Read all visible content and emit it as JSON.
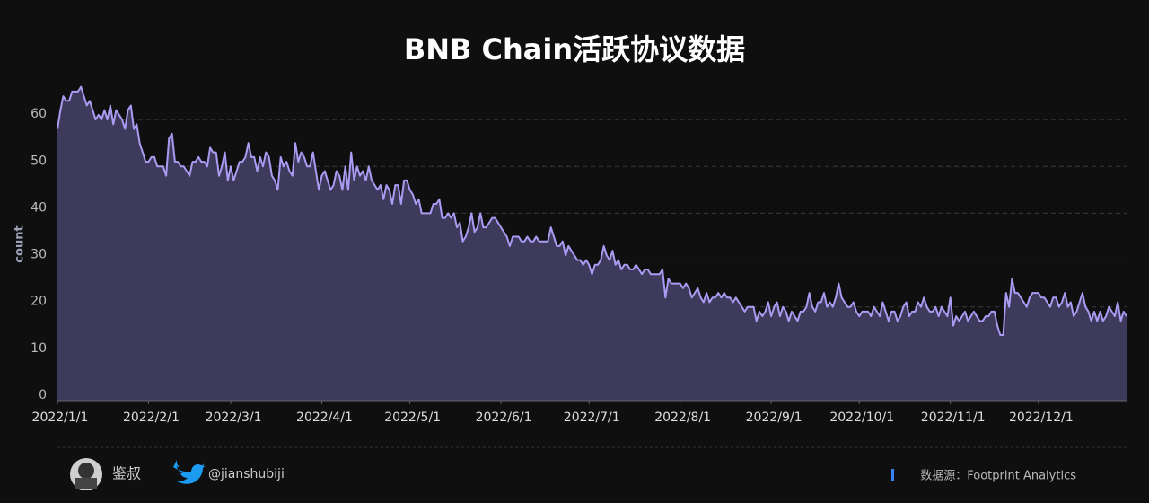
{
  "chart_data": {
    "type": "area",
    "title": "BNB Chain活跃协议数据",
    "y_label": "count",
    "color": "#a99cf2",
    "fill": "#3d3a5c",
    "x": [
      "2022/1/1",
      "2022/1/2",
      "2022/1/3",
      "2022/1/4",
      "2022/1/5",
      "2022/1/6",
      "2022/1/7",
      "2022/1/8",
      "2022/1/9",
      "2022/1/10",
      "2022/1/11",
      "2022/1/12",
      "2022/1/13",
      "2022/1/14",
      "2022/1/15",
      "2022/1/16",
      "2022/1/17",
      "2022/1/18",
      "2022/1/19",
      "2022/1/20",
      "2022/1/21",
      "2022/1/22",
      "2022/1/23",
      "2022/1/24",
      "2022/1/25",
      "2022/1/26",
      "2022/1/27",
      "2022/1/28",
      "2022/1/29",
      "2022/1/30",
      "2022/1/31",
      "2022/2/1",
      "2022/2/2",
      "2022/2/3",
      "2022/2/4",
      "2022/2/5",
      "2022/2/6",
      "2022/2/7",
      "2022/2/8",
      "2022/2/9",
      "2022/2/10",
      "2022/2/11",
      "2022/2/12",
      "2022/2/13",
      "2022/2/14",
      "2022/2/15",
      "2022/2/16",
      "2022/2/17",
      "2022/2/18",
      "2022/2/19",
      "2022/2/20",
      "2022/2/21",
      "2022/2/22",
      "2022/2/23",
      "2022/2/24",
      "2022/2/25",
      "2022/2/26",
      "2022/2/27",
      "2022/2/28",
      "2022/3/1",
      "2022/3/2",
      "2022/3/3",
      "2022/3/4",
      "2022/3/5",
      "2022/3/6",
      "2022/3/7",
      "2022/3/8",
      "2022/3/9",
      "2022/3/10",
      "2022/3/11",
      "2022/3/12",
      "2022/3/13",
      "2022/3/14",
      "2022/3/15",
      "2022/3/16",
      "2022/3/17",
      "2022/3/18",
      "2022/3/19",
      "2022/3/20",
      "2022/3/21",
      "2022/3/22",
      "2022/3/23",
      "2022/3/24",
      "2022/3/25",
      "2022/3/26",
      "2022/3/27",
      "2022/3/28",
      "2022/3/29",
      "2022/3/30",
      "2022/3/31",
      "2022/4/1",
      "2022/4/2",
      "2022/4/3",
      "2022/4/4",
      "2022/4/5",
      "2022/4/6",
      "2022/4/7",
      "2022/4/8",
      "2022/4/9",
      "2022/4/10",
      "2022/4/11",
      "2022/4/12",
      "2022/4/13",
      "2022/4/14",
      "2022/4/15",
      "2022/4/16",
      "2022/4/17",
      "2022/4/18",
      "2022/4/19",
      "2022/4/20",
      "2022/4/21",
      "2022/4/22",
      "2022/4/23",
      "2022/4/24",
      "2022/4/25",
      "2022/4/26",
      "2022/4/27",
      "2022/4/28",
      "2022/4/29",
      "2022/4/30",
      "2022/5/1",
      "2022/5/2",
      "2022/5/3",
      "2022/5/4",
      "2022/5/5",
      "2022/5/6",
      "2022/5/7",
      "2022/5/8",
      "2022/5/9",
      "2022/5/10",
      "2022/5/11",
      "2022/5/12",
      "2022/5/13",
      "2022/5/14",
      "2022/5/15",
      "2022/5/16",
      "2022/5/17",
      "2022/5/18",
      "2022/5/19",
      "2022/5/20",
      "2022/5/21",
      "2022/5/22",
      "2022/5/23",
      "2022/5/24",
      "2022/5/25",
      "2022/5/26",
      "2022/5/27",
      "2022/5/28",
      "2022/5/29",
      "2022/5/30",
      "2022/5/31",
      "2022/6/1",
      "2022/6/2",
      "2022/6/3",
      "2022/6/4",
      "2022/6/5",
      "2022/6/6",
      "2022/6/7",
      "2022/6/8",
      "2022/6/9",
      "2022/6/10",
      "2022/6/11",
      "2022/6/12",
      "2022/6/13",
      "2022/6/14",
      "2022/6/15",
      "2022/6/16",
      "2022/6/17",
      "2022/6/18",
      "2022/6/19",
      "2022/6/20",
      "2022/6/21",
      "2022/6/22",
      "2022/6/23",
      "2022/6/24",
      "2022/6/25",
      "2022/6/26",
      "2022/6/27",
      "2022/6/28",
      "2022/6/29",
      "2022/6/30",
      "2022/7/1",
      "2022/7/2",
      "2022/7/3",
      "2022/7/4",
      "2022/7/5",
      "2022/7/6",
      "2022/7/7",
      "2022/7/8",
      "2022/7/9",
      "2022/7/10",
      "2022/7/11",
      "2022/7/12",
      "2022/7/13",
      "2022/7/14",
      "2022/7/15",
      "2022/7/16",
      "2022/7/17",
      "2022/7/18",
      "2022/7/19",
      "2022/7/20",
      "2022/7/21",
      "2022/7/22",
      "2022/7/23",
      "2022/7/24",
      "2022/7/25",
      "2022/7/26",
      "2022/7/27",
      "2022/7/28",
      "2022/7/29",
      "2022/7/30",
      "2022/7/31",
      "2022/8/1",
      "2022/8/2",
      "2022/8/3",
      "2022/8/4",
      "2022/8/5",
      "2022/8/6",
      "2022/8/7",
      "2022/8/8",
      "2022/8/9",
      "2022/8/10",
      "2022/8/11",
      "2022/8/12",
      "2022/8/13",
      "2022/8/14",
      "2022/8/15",
      "2022/8/16",
      "2022/8/17",
      "2022/8/18",
      "2022/8/19",
      "2022/8/20",
      "2022/8/21",
      "2022/8/22",
      "2022/8/23",
      "2022/8/24",
      "2022/8/25",
      "2022/8/26",
      "2022/8/27",
      "2022/8/28",
      "2022/8/29",
      "2022/8/30",
      "2022/8/31",
      "2022/9/1",
      "2022/9/2",
      "2022/9/3",
      "2022/9/4",
      "2022/9/5",
      "2022/9/6",
      "2022/9/7",
      "2022/9/8",
      "2022/9/9",
      "2022/9/10",
      "2022/9/11",
      "2022/9/12",
      "2022/9/13",
      "2022/9/14",
      "2022/9/15",
      "2022/9/16",
      "2022/9/17",
      "2022/9/18",
      "2022/9/19",
      "2022/9/20",
      "2022/9/21",
      "2022/9/22",
      "2022/9/23",
      "2022/9/24",
      "2022/9/25",
      "2022/9/26",
      "2022/9/27",
      "2022/9/28",
      "2022/9/29",
      "2022/9/30",
      "2022/10/1",
      "2022/10/2",
      "2022/10/3",
      "2022/10/4",
      "2022/10/5",
      "2022/10/6",
      "2022/10/7",
      "2022/10/8",
      "2022/10/9",
      "2022/10/10",
      "2022/10/11",
      "2022/10/12",
      "2022/10/13",
      "2022/10/14",
      "2022/10/15",
      "2022/10/16",
      "2022/10/17",
      "2022/10/18",
      "2022/10/19",
      "2022/10/20",
      "2022/10/21",
      "2022/10/22",
      "2022/10/23",
      "2022/10/24",
      "2022/10/25",
      "2022/10/26",
      "2022/10/27",
      "2022/10/28",
      "2022/10/29",
      "2022/10/30",
      "2022/10/31",
      "2022/11/1",
      "2022/11/2",
      "2022/11/3",
      "2022/11/4",
      "2022/11/5",
      "2022/11/6",
      "2022/11/7",
      "2022/11/8",
      "2022/11/9",
      "2022/11/10",
      "2022/11/11",
      "2022/11/12",
      "2022/11/13",
      "2022/11/14",
      "2022/11/15",
      "2022/11/16",
      "2022/11/17",
      "2022/11/18",
      "2022/11/19",
      "2022/11/20",
      "2022/11/21",
      "2022/11/22",
      "2022/11/23",
      "2022/11/24",
      "2022/11/25",
      "2022/11/26",
      "2022/11/27",
      "2022/11/28",
      "2022/11/29",
      "2022/11/30",
      "2022/12/1",
      "2022/12/2",
      "2022/12/3",
      "2022/12/4",
      "2022/12/5",
      "2022/12/6",
      "2022/12/7",
      "2022/12/8",
      "2022/12/9",
      "2022/12/10",
      "2022/12/11",
      "2022/12/12",
      "2022/12/13",
      "2022/12/14",
      "2022/12/15",
      "2022/12/16",
      "2022/12/17",
      "2022/12/18",
      "2022/12/19",
      "2022/12/20",
      "2022/12/21",
      "2022/12/22",
      "2022/12/23",
      "2022/12/24",
      "2022/12/25",
      "2022/12/26",
      "2022/12/27",
      "2022/12/28",
      "2022/12/29",
      "2022/12/30",
      "2022/12/31"
    ],
    "values": [
      58,
      62,
      65,
      64,
      64,
      66,
      66,
      66,
      67,
      65,
      63,
      64,
      62,
      60,
      61,
      60,
      62,
      60,
      63,
      59,
      62,
      61,
      60,
      58,
      62,
      63,
      58,
      59,
      55,
      53,
      51,
      51,
      52,
      52,
      50,
      50,
      50,
      48,
      56,
      57,
      51,
      51,
      50,
      50,
      49,
      48,
      51,
      51,
      52,
      51,
      51,
      50,
      54,
      53,
      53,
      48,
      50,
      53,
      47,
      50,
      47,
      49,
      51,
      51,
      52,
      55,
      52,
      52,
      49,
      52,
      50,
      53,
      52,
      48,
      47,
      45,
      52,
      50,
      51,
      49,
      48,
      55,
      51,
      53,
      52,
      50,
      50,
      53,
      49,
      45,
      48,
      49,
      47,
      45,
      46,
      49,
      48,
      45,
      50,
      45,
      53,
      47,
      50,
      48,
      49,
      47,
      50,
      47,
      46,
      45,
      46,
      43,
      46,
      45,
      42,
      46,
      46,
      42,
      47,
      47,
      45,
      44,
      42,
      43,
      40,
      40,
      40,
      40,
      42,
      42,
      43,
      39,
      39,
      40,
      39,
      40,
      37,
      38,
      34,
      35,
      37,
      40,
      36,
      37,
      40,
      37,
      37,
      38,
      39,
      39,
      38,
      37,
      36,
      35,
      33,
      35,
      35,
      35,
      34,
      34,
      35,
      34,
      34,
      35,
      34,
      34,
      34,
      34,
      37,
      35,
      33,
      33,
      34,
      31,
      33,
      32,
      31,
      30,
      30,
      29,
      30,
      29,
      27,
      29,
      29,
      30,
      33,
      31,
      30,
      32,
      29,
      30,
      28,
      29,
      29,
      28,
      28,
      29,
      28,
      27,
      28,
      28,
      27,
      27,
      27,
      27,
      28,
      22,
      26,
      25,
      25,
      25,
      25,
      24,
      25,
      24,
      22,
      23,
      24,
      22,
      21,
      23,
      21,
      22,
      22,
      23,
      22,
      23,
      22,
      22,
      21,
      22,
      21,
      20,
      19,
      20,
      20,
      20,
      17,
      19,
      18,
      19,
      21,
      18,
      20,
      21,
      18,
      20,
      19,
      17,
      19,
      18,
      17,
      19,
      19,
      20,
      23,
      20,
      19,
      21,
      21,
      23,
      20,
      21,
      20,
      22,
      25,
      22,
      21,
      20,
      20,
      21,
      19,
      18,
      19,
      19,
      19,
      18,
      20,
      19,
      18,
      21,
      19,
      17,
      19,
      19,
      17,
      18,
      20,
      21,
      18,
      19,
      19,
      21,
      20,
      22,
      20,
      19,
      19,
      20,
      18,
      20,
      19,
      18,
      22,
      16,
      18,
      17,
      18,
      19,
      17,
      18,
      19,
      18,
      17,
      17,
      18,
      18,
      19,
      19,
      16,
      14,
      14,
      23,
      20,
      26,
      23,
      23,
      22,
      21,
      20,
      22,
      23,
      23,
      23,
      22,
      22,
      21,
      20,
      22,
      22,
      20,
      21,
      23,
      20,
      21,
      18,
      19,
      21,
      23,
      20,
      19,
      17,
      19,
      17,
      19,
      17,
      18,
      20,
      19,
      18,
      21,
      17,
      19,
      18
    ],
    "xlim": [
      "2022/1/1",
      "2022/12/31"
    ],
    "xticks": [
      "2022/1/1",
      "2022/2/1",
      "2022/3/1",
      "2022/4/1",
      "2022/5/1",
      "2022/6/1",
      "2022/7/1",
      "2022/8/1",
      "2022/9/1",
      "2022/10/1",
      "2022/11/1",
      "2022/12/1"
    ],
    "ylim": [
      0,
      70
    ],
    "yticks": [
      0,
      10,
      20,
      30,
      40,
      50,
      60
    ],
    "grid": true
  },
  "footer": {
    "author": "鉴叔",
    "twitter": "@jianshubiji",
    "source": "数据源：Footprint  Analytics"
  }
}
